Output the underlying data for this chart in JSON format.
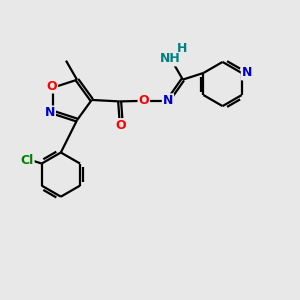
{
  "bg_color": "#e8e8e8",
  "bond_color": "#000000",
  "bond_width": 1.6,
  "atom_colors": {
    "O": "#ff0000",
    "N": "#0000cc",
    "Cl": "#008000",
    "C": "#000000",
    "H": "#008080"
  },
  "font_size": 9,
  "figsize": [
    3.0,
    3.0
  ],
  "dpi": 100
}
